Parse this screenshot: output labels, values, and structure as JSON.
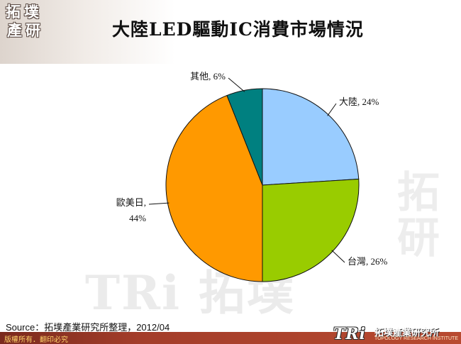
{
  "header": {
    "title": "大陸LED驅動IC消費市場情況",
    "logo_chars": [
      "拓",
      "墣",
      "產",
      "研"
    ]
  },
  "watermark": {
    "text": "TRi 拓墣",
    "side_text": "拓研"
  },
  "chart_data": {
    "type": "pie",
    "title": "大陸LED驅動IC消費市場情況",
    "start_angle_deg": 0,
    "direction": "clockwise",
    "slices": [
      {
        "label": "大陸",
        "value": 24,
        "display": "大陸, 24%",
        "color": "#99ccff"
      },
      {
        "label": "台灣",
        "value": 26,
        "display": "台灣, 26%",
        "color": "#99cc00"
      },
      {
        "label": "歐美日",
        "value": 44,
        "display_line1": "歐美日,",
        "display_line2": "44%",
        "color": "#ff9900"
      },
      {
        "label": "其他",
        "value": 6,
        "display": "其他, 6%",
        "color": "#008080"
      }
    ]
  },
  "footer": {
    "source": "Source：拓墣產業研究所整理，2012/04",
    "copyright": "版權所有．翻印必究",
    "logo_mark": "TRi",
    "company": "拓墣產業研究所",
    "company_en": "TOPOLOGY RESEARCH INSTITUTE"
  }
}
